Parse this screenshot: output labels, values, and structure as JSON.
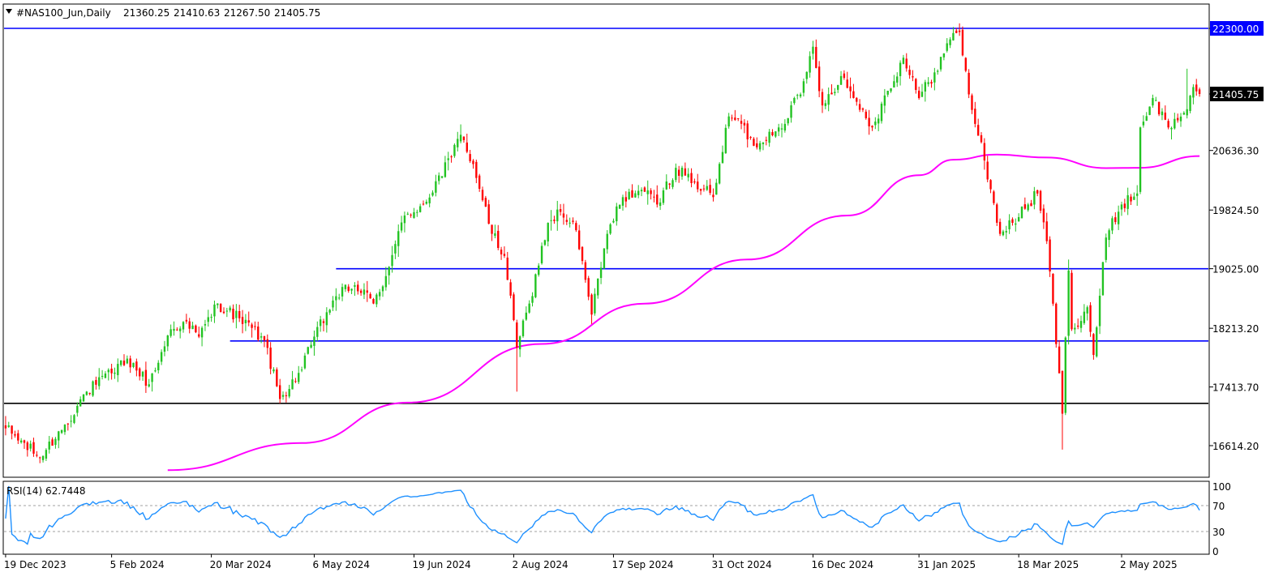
{
  "window": {
    "symbol_header": "#NAS100_Jun,Daily",
    "ohlc_values": [
      "21360.25",
      "21410.63",
      "21267.50",
      "21405.75"
    ],
    "collapse_icon": "triangle-down-icon"
  },
  "chart_data": {
    "type": "candlestick",
    "symbol": "#NAS100_Jun",
    "timeframe": "Daily",
    "price_axis_labels": [
      "22300.00",
      "21405.75",
      "20636.30",
      "19824.50",
      "19025.00",
      "18213.20",
      "17413.70",
      "16614.20"
    ],
    "current_price": "21405.75",
    "time_axis_labels": [
      "19 Dec 2023",
      "5 Feb 2024",
      "20 Mar 2024",
      "6 May 2024",
      "19 Jun 2024",
      "2 Aug 2024",
      "17 Sep 2024",
      "31 Oct 2024",
      "16 Dec 2024",
      "31 Jan 2025",
      "18 Mar 2025",
      "2 May 2025"
    ],
    "ylim": [
      16250,
      22420
    ],
    "anchors": [
      {
        "date": "19 Dec 2023",
        "close": 16850
      },
      {
        "date": "3 Jan 2024",
        "close": 16450
      },
      {
        "date": "15 Jan 2024",
        "close": 16900
      },
      {
        "date": "24 Jan 2024",
        "close": 17350
      },
      {
        "date": "5 Feb 2024",
        "close": 17600
      },
      {
        "date": "12 Feb 2024",
        "close": 17800
      },
      {
        "date": "21 Feb 2024",
        "close": 17450
      },
      {
        "date": "1 Mar 2024",
        "close": 18200
      },
      {
        "date": "7 Mar 2024",
        "close": 18300
      },
      {
        "date": "14 Mar 2024",
        "close": 18100
      },
      {
        "date": "22 Mar 2024",
        "close": 18550
      },
      {
        "date": "2 Apr 2024",
        "close": 18350
      },
      {
        "date": "12 Apr 2024",
        "close": 18050
      },
      {
        "date": "19 Apr 2024",
        "close": 17250
      },
      {
        "date": "30 Apr 2024",
        "close": 17650
      },
      {
        "date": "6 May 2024",
        "close": 18100
      },
      {
        "date": "15 May 2024",
        "close": 18650
      },
      {
        "date": "23 May 2024",
        "close": 18800
      },
      {
        "date": "31 May 2024",
        "close": 18550
      },
      {
        "date": "7 Jun 2024",
        "close": 19050
      },
      {
        "date": "14 Jun 2024",
        "close": 19750
      },
      {
        "date": "24 Jun 2024",
        "close": 19900
      },
      {
        "date": "5 Jul 2024",
        "close": 20550
      },
      {
        "date": "10 Jul 2024",
        "close": 20850
      },
      {
        "date": "16 Jul 2024",
        "close": 20450
      },
      {
        "date": "24 Jul 2024",
        "close": 19500
      },
      {
        "date": "30 Jul 2024",
        "close": 19200
      },
      {
        "date": "5 Aug 2024",
        "close": 17950
      },
      {
        "date": "9 Aug 2024",
        "close": 18550
      },
      {
        "date": "19 Aug 2024",
        "close": 19650
      },
      {
        "date": "23 Aug 2024",
        "close": 19800
      },
      {
        "date": "30 Aug 2024",
        "close": 19550
      },
      {
        "date": "6 Sep 2024",
        "close": 18400
      },
      {
        "date": "13 Sep 2024",
        "close": 19500
      },
      {
        "date": "20 Sep 2024",
        "close": 20000
      },
      {
        "date": "30 Sep 2024",
        "close": 20100
      },
      {
        "date": "7 Oct 2024",
        "close": 19900
      },
      {
        "date": "15 Oct 2024",
        "close": 20400
      },
      {
        "date": "23 Oct 2024",
        "close": 20200
      },
      {
        "date": "31 Oct 2024",
        "close": 20000
      },
      {
        "date": "7 Nov 2024",
        "close": 21100
      },
      {
        "date": "13 Nov 2024",
        "close": 21000
      },
      {
        "date": "19 Nov 2024",
        "close": 20700
      },
      {
        "date": "29 Nov 2024",
        "close": 20950
      },
      {
        "date": "10 Dec 2024",
        "close": 21400
      },
      {
        "date": "16 Dec 2024",
        "close": 22050
      },
      {
        "date": "19 Dec 2024",
        "close": 21250
      },
      {
        "date": "27 Dec 2024",
        "close": 21650
      },
      {
        "date": "3 Jan 2025",
        "close": 21300
      },
      {
        "date": "10 Jan 2025",
        "close": 20950
      },
      {
        "date": "17 Jan 2025",
        "close": 21450
      },
      {
        "date": "24 Jan 2025",
        "close": 21900
      },
      {
        "date": "31 Jan 2025",
        "close": 21350
      },
      {
        "date": "7 Feb 2025",
        "close": 21700
      },
      {
        "date": "14 Feb 2025",
        "close": 22150
      },
      {
        "date": "19 Feb 2025",
        "close": 22250
      },
      {
        "date": "24 Feb 2025",
        "close": 21400
      },
      {
        "date": "3 Mar 2025",
        "close": 20500
      },
      {
        "date": "10 Mar 2025",
        "close": 19500
      },
      {
        "date": "14 Mar 2025",
        "close": 19650
      },
      {
        "date": "21 Mar 2025",
        "close": 19900
      },
      {
        "date": "26 Mar 2025",
        "close": 20050
      },
      {
        "date": "31 Mar 2025",
        "close": 19400
      },
      {
        "date": "4 Apr 2025",
        "close": 17600
      },
      {
        "date": "7 Apr 2025",
        "close": 17050
      },
      {
        "date": "9 Apr 2025",
        "close": 19000
      },
      {
        "date": "10 Apr 2025",
        "close": 18200
      },
      {
        "date": "17 Apr 2025",
        "close": 18500
      },
      {
        "date": "21 Apr 2025",
        "close": 17850
      },
      {
        "date": "25 Apr 2025",
        "close": 19450
      },
      {
        "date": "2 May 2025",
        "close": 19900
      },
      {
        "date": "9 May 2025",
        "close": 20050
      },
      {
        "date": "12 May 2025",
        "close": 20950
      },
      {
        "date": "16 May 2025",
        "close": 21350
      },
      {
        "date": "23 May 2025",
        "close": 20950
      },
      {
        "date": "30 May 2025",
        "close": 21150
      },
      {
        "date": "4 Jun 2025",
        "close": 21500
      },
      {
        "date": "6 Jun 2025",
        "close": 21405.75
      }
    ],
    "moving_average": {
      "color": "#ff00ff",
      "points": [
        {
          "date": "29 Feb 2024",
          "value": 16280
        },
        {
          "date": "30 Apr 2024",
          "value": 16650
        },
        {
          "date": "15 Jun 2024",
          "value": 17200
        },
        {
          "date": "15 Aug 2024",
          "value": 18000
        },
        {
          "date": "1 Oct 2024",
          "value": 18550
        },
        {
          "date": "15 Nov 2024",
          "value": 19150
        },
        {
          "date": "31 Dec 2024",
          "value": 19750
        },
        {
          "date": "31 Jan 2025",
          "value": 20300
        },
        {
          "date": "15 Feb 2025",
          "value": 20510
        },
        {
          "date": "7 Mar 2025",
          "value": 20580
        },
        {
          "date": "31 Mar 2025",
          "value": 20540
        },
        {
          "date": "25 Apr 2025",
          "value": 20395
        },
        {
          "date": "10 May 2025",
          "value": 20400
        },
        {
          "date": "6 Jun 2025",
          "value": 20560
        }
      ]
    },
    "horizontal_lines": [
      {
        "price": 22300,
        "color": "#0000ff"
      },
      {
        "price": 19025,
        "color": "#0000ff",
        "from": "15 May 2024"
      },
      {
        "price": 18040,
        "color": "#0000ff",
        "from": "28 Mar 2024"
      },
      {
        "price": 17190,
        "color": "#000000"
      }
    ],
    "colors": {
      "bull": "#22c322",
      "bear": "#ff0000",
      "grid": "#000000"
    },
    "rsi": {
      "label": "RSI(14) 62.7448",
      "period": 14,
      "value": 62.7448,
      "levels": [
        70,
        30
      ],
      "axis_labels": [
        "100",
        "70",
        "30",
        "0"
      ],
      "color": "#1e90ff"
    }
  }
}
